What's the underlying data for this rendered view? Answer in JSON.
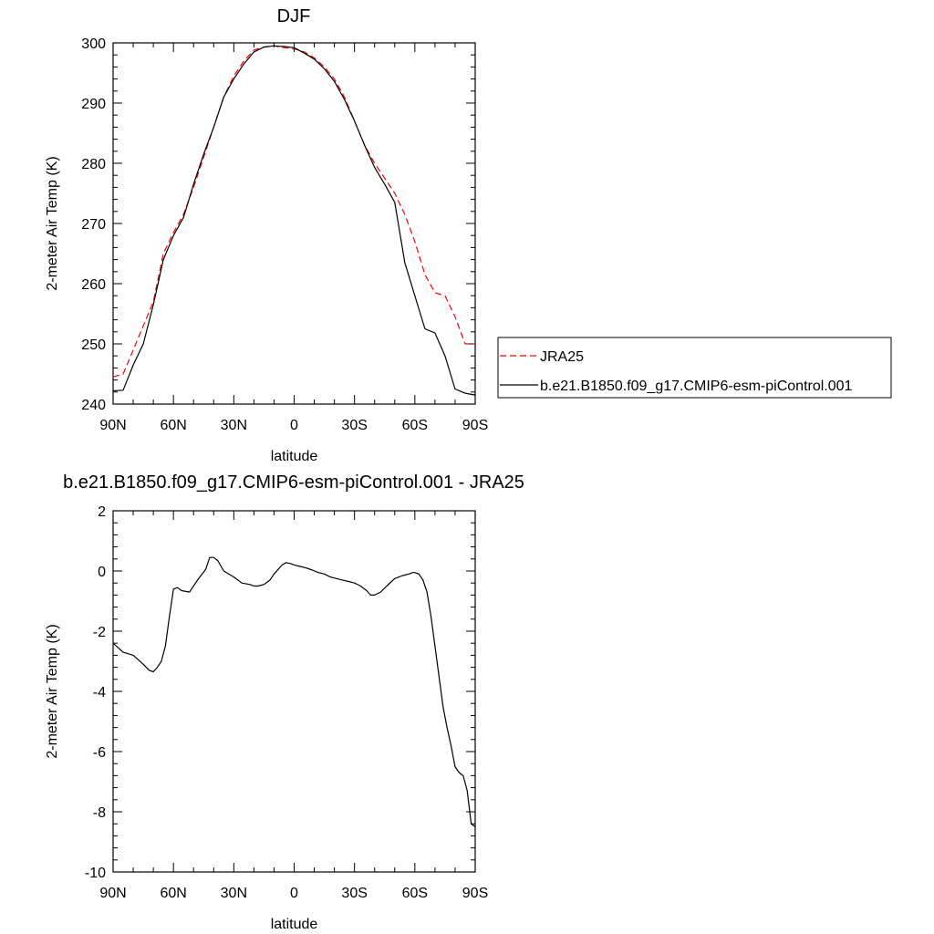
{
  "chart_data": [
    {
      "type": "line",
      "title": "DJF",
      "xlabel": "latitude",
      "ylabel": "2-meter Air Temp (K)",
      "xlim": [
        90,
        -90
      ],
      "ylim": [
        240,
        300
      ],
      "xticks": [
        90,
        60,
        30,
        0,
        -30,
        -60,
        -90
      ],
      "xtick_labels": [
        "90N",
        "60N",
        "30N",
        "0",
        "30S",
        "60S",
        "90S"
      ],
      "yticks": [
        240,
        250,
        260,
        270,
        280,
        290,
        300
      ],
      "ytick_labels": [
        "240",
        "250",
        "260",
        "270",
        "280",
        "290",
        "300"
      ],
      "grid": false,
      "legend_position": "right",
      "series": [
        {
          "name": "JRA25",
          "color": "#ff0000",
          "dash": "dashed",
          "x": [
            90,
            85,
            80,
            75,
            70,
            65,
            60,
            55,
            50,
            45,
            40,
            35,
            30,
            25,
            20,
            15,
            10,
            5,
            0,
            -5,
            -10,
            -15,
            -20,
            -25,
            -30,
            -35,
            -40,
            -45,
            -50,
            -55,
            -60,
            -65,
            -70,
            -75,
            -80,
            -85,
            -90
          ],
          "y": [
            244.5,
            245,
            249,
            253,
            257,
            265,
            268.5,
            271.5,
            276,
            281,
            286,
            291,
            294.5,
            297,
            298.8,
            299.3,
            299.5,
            299.2,
            299,
            298.5,
            297.5,
            296,
            294,
            291,
            287,
            283,
            280,
            277.5,
            275,
            271.5,
            267,
            261.5,
            258.5,
            258,
            254.5,
            250,
            250
          ]
        },
        {
          "name": "b.e21.B1850.f09_g17.CMIP6-esm-piControl.001",
          "color": "#000000",
          "dash": "solid",
          "x": [
            90,
            85,
            80,
            75,
            70,
            65,
            60,
            55,
            50,
            45,
            40,
            35,
            30,
            25,
            20,
            15,
            10,
            5,
            0,
            -5,
            -10,
            -15,
            -20,
            -25,
            -30,
            -35,
            -40,
            -45,
            -50,
            -55,
            -60,
            -65,
            -70,
            -75,
            -80,
            -85,
            -90
          ],
          "y": [
            242.2,
            242.3,
            246.5,
            250,
            256.5,
            264,
            268,
            271,
            276.5,
            281.5,
            286,
            291,
            294,
            296.5,
            298.5,
            299.3,
            299.5,
            299.4,
            299.2,
            298.3,
            297.3,
            295.7,
            293.6,
            290.6,
            287,
            283,
            279.3,
            276.5,
            273.5,
            263.5,
            258,
            252.5,
            251.8,
            248,
            242.5,
            241.8,
            241.5
          ]
        }
      ]
    },
    {
      "type": "line",
      "title": "b.e21.B1850.f09_g17.CMIP6-esm-piControl.001 - JRA25",
      "xlabel": "latitude",
      "ylabel": "2-meter Air Temp (K)",
      "xlim": [
        90,
        -90
      ],
      "ylim": [
        -10,
        2
      ],
      "xticks": [
        90,
        60,
        30,
        0,
        -30,
        -60,
        -90
      ],
      "xtick_labels": [
        "90N",
        "60N",
        "30N",
        "0",
        "30S",
        "60S",
        "90S"
      ],
      "yticks": [
        2,
        0,
        -2,
        -4,
        -6,
        -8,
        -10
      ],
      "ytick_labels": [
        "2",
        "0",
        "-2",
        "-4",
        "-6",
        "-8",
        "-10"
      ],
      "grid": false,
      "series": [
        {
          "color": "#000000",
          "dash": "solid",
          "x": [
            90,
            85,
            80,
            75,
            72,
            70,
            68,
            66,
            64,
            62,
            60,
            58,
            56,
            52,
            48,
            44,
            42,
            40,
            38,
            35,
            30,
            26,
            22,
            20,
            18,
            15,
            12,
            10,
            8,
            6,
            4,
            2,
            0,
            -3,
            -6,
            -9,
            -12,
            -15,
            -18,
            -21,
            -24,
            -27,
            -30,
            -33,
            -36,
            -38,
            -40,
            -43,
            -46,
            -50,
            -54,
            -57,
            -59,
            -60,
            -62,
            -64,
            -66,
            -68,
            -70,
            -72,
            -74,
            -76,
            -78,
            -80,
            -82,
            -84,
            -86,
            -88,
            -90
          ],
          "y": [
            -2.4,
            -2.7,
            -2.8,
            -3.1,
            -3.3,
            -3.35,
            -3.2,
            -3.0,
            -2.5,
            -1.5,
            -0.6,
            -0.55,
            -0.65,
            -0.7,
            -0.3,
            0.05,
            0.45,
            0.45,
            0.35,
            0.0,
            -0.2,
            -0.4,
            -0.45,
            -0.5,
            -0.5,
            -0.45,
            -0.3,
            -0.1,
            0.05,
            0.2,
            0.28,
            0.25,
            0.2,
            0.15,
            0.1,
            0.03,
            -0.05,
            -0.1,
            -0.2,
            -0.25,
            -0.3,
            -0.35,
            -0.4,
            -0.5,
            -0.65,
            -0.8,
            -0.8,
            -0.7,
            -0.5,
            -0.25,
            -0.15,
            -0.1,
            -0.05,
            -0.05,
            -0.1,
            -0.3,
            -0.7,
            -1.5,
            -2.5,
            -3.5,
            -4.5,
            -5.2,
            -5.8,
            -6.5,
            -6.7,
            -6.8,
            -7.3,
            -8.4,
            -8.5
          ]
        }
      ]
    }
  ]
}
